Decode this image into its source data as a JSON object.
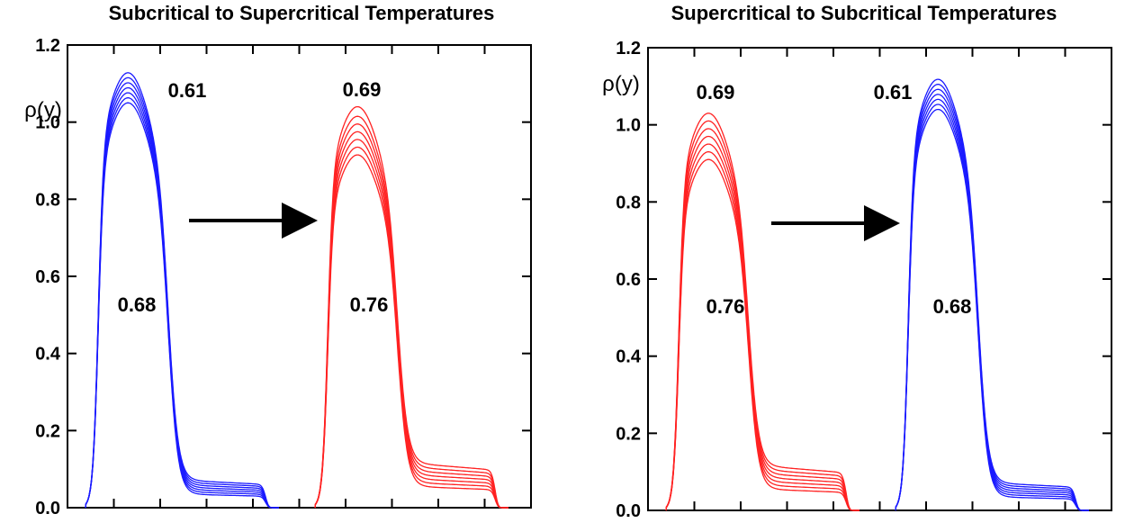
{
  "chart_data": [
    {
      "type": "line",
      "title": "Subcritical to Supercritical Temperatures",
      "ylabel": "ρ(y)",
      "xlabel": "",
      "ylim": [
        0,
        1.2
      ],
      "yticks": [
        "0.0",
        "0.2",
        "0.4",
        "0.6",
        "0.8",
        "1.0",
        "1.2"
      ],
      "grid": false,
      "arrow": "left-to-right",
      "colors": {
        "before": "#1a1aff",
        "after": "#ff2222"
      },
      "groups": [
        {
          "color": "#1a1aff",
          "label_peak": "0.61",
          "label_tail": "0.68",
          "peaks": [
            1.05,
            1.063,
            1.076,
            1.089,
            1.102,
            1.115,
            1.128
          ],
          "shoulders": [
            0.035,
            0.041,
            0.047,
            0.053,
            0.059,
            0.065,
            0.071
          ]
        },
        {
          "color": "#ff2222",
          "label_peak": "0.69",
          "label_tail": "0.76",
          "peaks": [
            0.915,
            0.935,
            0.955,
            0.975,
            0.995,
            1.015,
            1.04
          ],
          "shoulders": [
            0.055,
            0.065,
            0.075,
            0.085,
            0.095,
            0.105,
            0.115
          ]
        }
      ]
    },
    {
      "type": "line",
      "title": "Supercritical to Subcritical Temperatures",
      "ylabel": "ρ(y)",
      "xlabel": "",
      "ylim": [
        0,
        1.2
      ],
      "yticks": [
        "0.0",
        "0.2",
        "0.4",
        "0.6",
        "0.8",
        "1.0",
        "1.2"
      ],
      "grid": false,
      "arrow": "left-to-right",
      "colors": {
        "before": "#ff2222",
        "after": "#1a1aff"
      },
      "groups": [
        {
          "color": "#ff2222",
          "label_peak": "0.69",
          "label_tail": "0.76",
          "peaks": [
            0.91,
            0.93,
            0.95,
            0.97,
            0.99,
            1.01,
            1.03
          ],
          "shoulders": [
            0.055,
            0.065,
            0.075,
            0.085,
            0.095,
            0.105,
            0.115
          ]
        },
        {
          "color": "#1a1aff",
          "label_peak": "0.61",
          "label_tail": "0.68",
          "peaks": [
            1.04,
            1.053,
            1.066,
            1.079,
            1.092,
            1.105,
            1.118
          ],
          "shoulders": [
            0.035,
            0.041,
            0.047,
            0.053,
            0.059,
            0.065,
            0.071
          ]
        }
      ]
    }
  ]
}
